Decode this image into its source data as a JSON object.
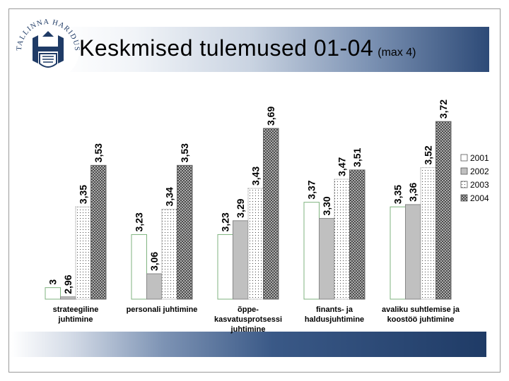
{
  "slide": {
    "title": "Keskmised tulemused 01-04",
    "subtitle": "(max 4)",
    "logo_text": "TALLINNA HARIDUSAMET"
  },
  "colors": {
    "band_dark": "#1f3b66",
    "series_2001": "#ffffff",
    "series_2002": "#c0c0c0",
    "series_2003": "#ffffff",
    "series_2004": "#b8b8b8"
  },
  "chart_data": {
    "type": "bar",
    "title": "Keskmised tulemused 01-04",
    "ylim": [
      2.95,
      3.95
    ],
    "grid": false,
    "legend_position": "right",
    "categories": [
      [
        "strateegiline",
        "juhtimine"
      ],
      [
        "personali juhtimine"
      ],
      [
        "õppe-",
        "kasvatusprotsessi",
        "juhtimine"
      ],
      [
        "finants- ja",
        "haldusjuhtimine"
      ],
      [
        "avaliku suhtlemise ja",
        "koostöö juhtimine"
      ]
    ],
    "series": [
      {
        "name": "2001",
        "pattern": "solid-white",
        "values": [
          3.0,
          3.23,
          3.23,
          3.37,
          3.35
        ],
        "labels": [
          "3",
          "3,23",
          "3,23",
          "3,37",
          "3,35"
        ]
      },
      {
        "name": "2002",
        "pattern": "solid-gray",
        "values": [
          2.96,
          3.06,
          3.29,
          3.3,
          3.36
        ],
        "labels": [
          "2,96",
          "3,06",
          "3,29",
          "3,30",
          "3,36"
        ]
      },
      {
        "name": "2003",
        "pattern": "dots",
        "values": [
          3.35,
          3.34,
          3.43,
          3.47,
          3.52
        ],
        "labels": [
          "3,35",
          "3,34",
          "3,43",
          "3,47",
          "3,52"
        ]
      },
      {
        "name": "2004",
        "pattern": "crosshatch",
        "values": [
          3.53,
          3.53,
          3.69,
          3.51,
          3.72
        ],
        "labels": [
          "3,53",
          "3,53",
          "3,69",
          "3,51",
          "3,72"
        ]
      }
    ]
  }
}
